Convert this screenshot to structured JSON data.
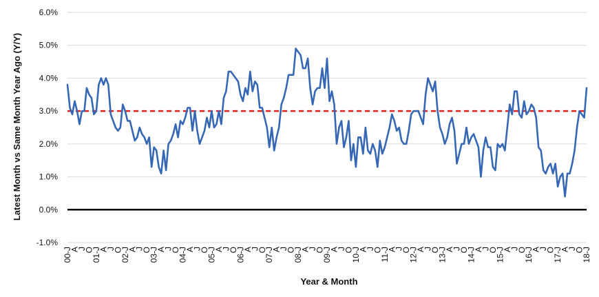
{
  "chart_data": {
    "type": "line",
    "title": "",
    "xlabel": "Year & Month",
    "ylabel": "Latest Month vs Same Month Year Ago (Y/Y)",
    "ylim": [
      -1.0,
      6.0
    ],
    "y_ticks": [
      "-1.0%",
      "0.0%",
      "1.0%",
      "2.0%",
      "3.0%",
      "4.0%",
      "5.0%",
      "6.0%"
    ],
    "x_period": {
      "start": "2000-01",
      "end": "2018-01",
      "frequency": "monthly"
    },
    "x_tick_labels": [
      "00-J",
      "A",
      "J",
      "O",
      "01-J",
      "A",
      "J",
      "O",
      "02-J",
      "A",
      "J",
      "O",
      "03-J",
      "A",
      "J",
      "O",
      "04-J",
      "A",
      "J",
      "O",
      "05-J",
      "A",
      "J",
      "O",
      "06-J",
      "A",
      "J",
      "O",
      "07-J",
      "A",
      "J",
      "O",
      "08-J",
      "A",
      "J",
      "O",
      "09-J",
      "A",
      "J",
      "O",
      "10-J",
      "A",
      "J",
      "O",
      "11-J",
      "A",
      "J",
      "O",
      "12-J",
      "A",
      "J",
      "O",
      "13-J",
      "A",
      "J",
      "O",
      "14-J",
      "A",
      "J",
      "O",
      "15-J",
      "A",
      "J",
      "O",
      "16-J",
      "A",
      "J",
      "O",
      "17-J",
      "A",
      "J",
      "O",
      "18-J"
    ],
    "grid": "horizontal",
    "legend": "none",
    "reference_lines": [
      {
        "value": 3.0,
        "style": "dashed",
        "color": "#e0201b"
      },
      {
        "value": 0.0,
        "style": "solid",
        "color": "#000000"
      }
    ],
    "series": [
      {
        "color": "#3567b5",
        "values": [
          3.8,
          3.1,
          2.9,
          3.3,
          3.0,
          2.6,
          3.0,
          3.0,
          3.7,
          3.5,
          3.4,
          2.9,
          3.0,
          3.8,
          4.0,
          3.8,
          4.0,
          3.8,
          2.9,
          2.7,
          2.5,
          2.4,
          2.5,
          3.2,
          3.0,
          2.7,
          2.7,
          2.4,
          2.1,
          2.2,
          2.5,
          2.3,
          2.2,
          2.0,
          2.2,
          1.3,
          1.9,
          1.8,
          1.3,
          1.1,
          1.8,
          1.2,
          2.0,
          2.1,
          2.3,
          2.6,
          2.2,
          2.7,
          2.6,
          2.8,
          3.1,
          3.1,
          2.4,
          3.0,
          2.4,
          2.0,
          2.2,
          2.4,
          2.8,
          2.5,
          3.0,
          2.5,
          2.6,
          3.0,
          2.6,
          3.4,
          3.6,
          4.2,
          4.2,
          4.1,
          4.0,
          3.9,
          3.5,
          3.3,
          3.7,
          3.5,
          4.2,
          3.6,
          3.9,
          3.8,
          3.1,
          3.1,
          2.8,
          2.5,
          1.9,
          2.5,
          1.8,
          2.2,
          2.5,
          3.2,
          3.4,
          3.7,
          4.1,
          4.1,
          4.1,
          4.9,
          4.8,
          4.7,
          4.3,
          4.3,
          4.6,
          3.7,
          3.2,
          3.6,
          3.7,
          3.7,
          4.3,
          3.7,
          4.6,
          3.3,
          3.6,
          3.2,
          2.0,
          2.5,
          2.7,
          1.9,
          2.2,
          2.7,
          1.5,
          2.0,
          1.3,
          2.2,
          2.2,
          1.7,
          2.5,
          1.8,
          1.7,
          2.0,
          1.8,
          1.3,
          2.1,
          1.7,
          1.9,
          2.2,
          2.5,
          2.9,
          2.7,
          2.4,
          2.5,
          2.1,
          2.0,
          2.0,
          2.4,
          2.9,
          3.0,
          3.0,
          3.0,
          2.8,
          2.6,
          3.5,
          4.0,
          3.8,
          3.6,
          3.9,
          3.0,
          2.5,
          2.3,
          2.0,
          2.2,
          2.6,
          2.8,
          2.4,
          1.4,
          1.7,
          2.0,
          2.0,
          2.5,
          2.0,
          2.2,
          2.3,
          2.1,
          1.9,
          1.0,
          1.8,
          2.2,
          1.9,
          1.9,
          1.3,
          1.2,
          2.0,
          1.9,
          2.0,
          1.8,
          2.5,
          3.2,
          2.9,
          3.6,
          3.6,
          2.9,
          2.8,
          3.3,
          2.9,
          3.0,
          3.2,
          3.1,
          2.8,
          1.9,
          1.8,
          1.2,
          1.1,
          1.3,
          1.4,
          1.1,
          1.4,
          0.7,
          1.0,
          1.1,
          0.4,
          1.1,
          1.1,
          1.4,
          1.8,
          2.5,
          3.0,
          2.9,
          2.8,
          3.7
        ]
      }
    ]
  }
}
